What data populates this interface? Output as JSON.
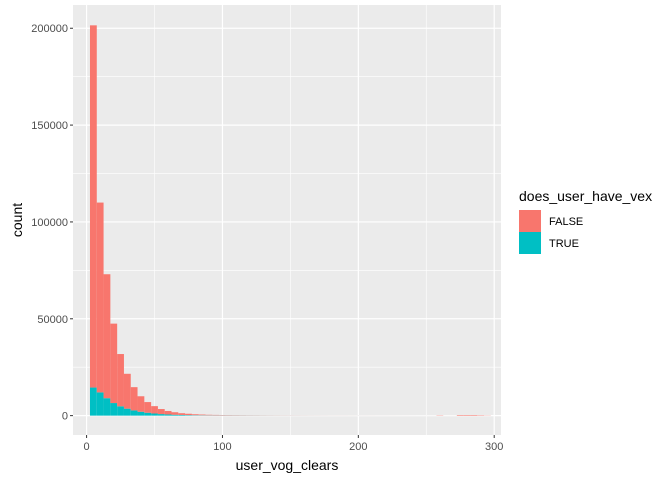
{
  "chart_data": {
    "type": "bar",
    "stacked": true,
    "xlabel": "user_vog_clears",
    "ylabel": "count",
    "xlim": [
      -10,
      305
    ],
    "ylim": [
      -10000,
      212000
    ],
    "x_ticks": [
      0,
      100,
      200,
      300
    ],
    "x_tick_labels": [
      "0",
      "100",
      "200",
      "300"
    ],
    "y_ticks": [
      0,
      50000,
      100000,
      150000,
      200000
    ],
    "y_tick_labels": [
      "0",
      "50000",
      "100000",
      "150000",
      "200000"
    ],
    "grid": true,
    "legend_position": "right",
    "legend": {
      "title": "does_user_have_vex",
      "entries": [
        {
          "label": "FALSE",
          "color": "#F8766D"
        },
        {
          "label": "TRUE",
          "color": "#00BFC4"
        }
      ]
    },
    "bin_width": 5,
    "bin_start": 2.5,
    "series": [
      {
        "name": "FALSE",
        "color": "#F8766D",
        "values": [
          187000,
          98000,
          64000,
          41000,
          27000,
          18000,
          12000,
          8000,
          5500,
          3800,
          2600,
          1800,
          1300,
          900,
          700,
          500,
          400,
          300,
          250,
          200,
          180,
          160,
          140,
          120,
          110,
          100,
          90,
          85,
          80,
          75,
          70,
          65,
          60,
          55,
          50,
          48,
          46,
          44,
          42,
          40,
          38,
          36,
          34,
          32,
          30,
          28,
          26,
          24,
          22,
          20,
          20,
          150,
          20,
          20,
          300,
          300,
          300,
          200,
          100
        ]
      },
      {
        "name": "TRUE",
        "color": "#00BFC4",
        "values": [
          14500,
          12000,
          9000,
          6500,
          4800,
          3600,
          2700,
          2000,
          1500,
          1100,
          800,
          600,
          450,
          350,
          270,
          210,
          170,
          140,
          120,
          100,
          90,
          80,
          70,
          65,
          60,
          55,
          50,
          45,
          42,
          40,
          38,
          36,
          34,
          32,
          30,
          28,
          27,
          26,
          25,
          24,
          23,
          22,
          21,
          20,
          19,
          18,
          17,
          16,
          15,
          14,
          13,
          12,
          11,
          10,
          10,
          10,
          10,
          10,
          10
        ]
      }
    ]
  }
}
